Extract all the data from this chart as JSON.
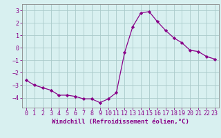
{
  "x": [
    0,
    1,
    2,
    3,
    4,
    5,
    6,
    7,
    8,
    9,
    10,
    11,
    12,
    13,
    14,
    15,
    16,
    17,
    18,
    19,
    20,
    21,
    22,
    23
  ],
  "y": [
    -2.6,
    -3.0,
    -3.2,
    -3.4,
    -3.8,
    -3.8,
    -3.9,
    -4.1,
    -4.1,
    -4.4,
    -4.1,
    -3.6,
    -0.4,
    1.7,
    2.8,
    2.9,
    2.1,
    1.4,
    0.8,
    0.4,
    -0.2,
    -0.3,
    -0.7,
    -0.9
  ],
  "xlabel": "Windchill (Refroidissement éolien,°C)",
  "ylim": [
    -4.8,
    3.5
  ],
  "xlim": [
    -0.5,
    23.5
  ],
  "yticks": [
    -4,
    -3,
    -2,
    -1,
    0,
    1,
    2,
    3
  ],
  "xticks": [
    0,
    1,
    2,
    3,
    4,
    5,
    6,
    7,
    8,
    9,
    10,
    11,
    12,
    13,
    14,
    15,
    16,
    17,
    18,
    19,
    20,
    21,
    22,
    23
  ],
  "line_color": "#880088",
  "marker": "D",
  "marker_size": 2.2,
  "bg_color": "#d8f0f0",
  "grid_color": "#aacaca",
  "spine_color": "#888888",
  "label_color": "#880088",
  "tick_color": "#880088",
  "xlabel_fontsize": 6.5,
  "tick_fontsize": 6.0
}
